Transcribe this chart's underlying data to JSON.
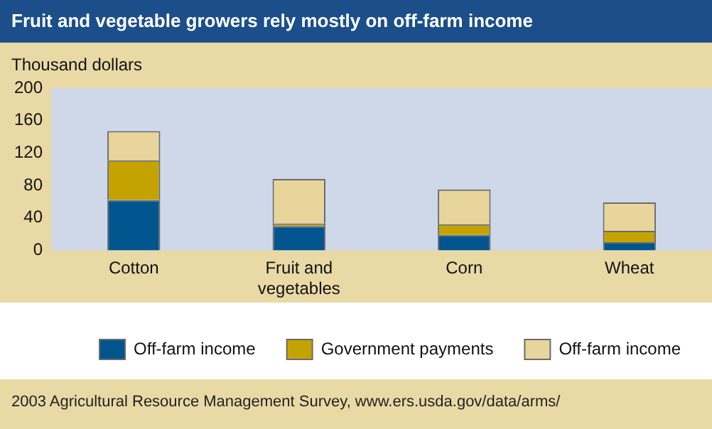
{
  "chart_data": {
    "type": "bar",
    "title": "Fruit and vegetable growers rely mostly on off-farm income",
    "ylabel": "Thousand dollars",
    "categories": [
      "Cotton",
      [
        "Fruit and",
        "vegetables"
      ],
      "Corn",
      "Wheat"
    ],
    "series": [
      {
        "name": "Off-farm income",
        "color": "#00558f",
        "values": [
          62,
          30,
          19,
          10
        ]
      },
      {
        "name": "Government payments",
        "color": "#c4a300",
        "values": [
          49,
          3,
          13,
          14
        ]
      },
      {
        "name": "Off-farm income",
        "color": "#e8d59b",
        "values": [
          36,
          55,
          43,
          35
        ]
      }
    ],
    "stacked": true,
    "ylim": [
      0,
      200
    ],
    "yticks": [
      0,
      40,
      80,
      120,
      160,
      200
    ],
    "grid": false,
    "legend": "bottom",
    "annotations": [
      "2003 Agricultural Resource Management Survey, www.ers.usda.gov/data/arms/"
    ]
  }
}
